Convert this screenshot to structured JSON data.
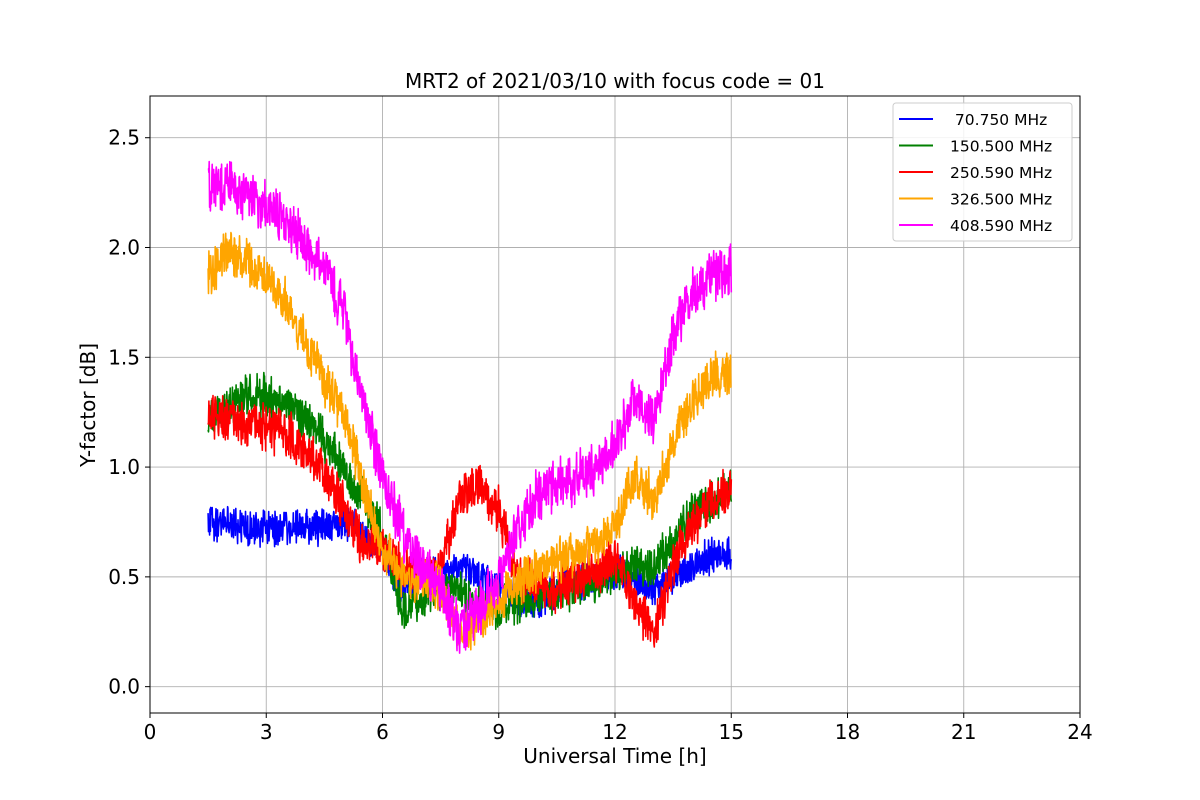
{
  "chart_data": {
    "type": "line",
    "title": "MRT2 of 2021/03/10 with focus code = 01",
    "xlabel": "Universal Time [h]",
    "ylabel": "Y-factor [dB]",
    "xlim": [
      0,
      24
    ],
    "ylim": [
      -0.12,
      2.69
    ],
    "xticks": [
      0,
      3,
      6,
      9,
      12,
      15,
      18,
      21,
      24
    ],
    "yticks": [
      0.0,
      0.5,
      1.0,
      1.5,
      2.0,
      2.5
    ],
    "ytick_labels": [
      "0.0",
      "0.5",
      "1.0",
      "1.5",
      "2.0",
      "2.5"
    ],
    "grid": true,
    "legend_position": "top-right",
    "x_range_data": [
      1.5,
      15.0
    ],
    "series": [
      {
        "name": " 70.750 MHz",
        "color": "#0000ff",
        "noise": 0.07,
        "points": [
          [
            1.5,
            0.75
          ],
          [
            2.0,
            0.75
          ],
          [
            2.5,
            0.72
          ],
          [
            3.0,
            0.72
          ],
          [
            3.5,
            0.74
          ],
          [
            4.0,
            0.73
          ],
          [
            4.5,
            0.72
          ],
          [
            5.0,
            0.75
          ],
          [
            5.5,
            0.7
          ],
          [
            6.0,
            0.62
          ],
          [
            6.5,
            0.45
          ],
          [
            7.0,
            0.5
          ],
          [
            7.5,
            0.52
          ],
          [
            8.0,
            0.55
          ],
          [
            8.5,
            0.5
          ],
          [
            9.0,
            0.45
          ],
          [
            9.5,
            0.4
          ],
          [
            10.0,
            0.4
          ],
          [
            10.5,
            0.45
          ],
          [
            11.0,
            0.48
          ],
          [
            11.5,
            0.5
          ],
          [
            12.0,
            0.52
          ],
          [
            12.5,
            0.48
          ],
          [
            13.0,
            0.45
          ],
          [
            13.5,
            0.5
          ],
          [
            14.0,
            0.55
          ],
          [
            14.5,
            0.6
          ],
          [
            15.0,
            0.6
          ]
        ]
      },
      {
        "name": "150.500 MHz",
        "color": "#008000",
        "noise": 0.08,
        "points": [
          [
            1.5,
            1.22
          ],
          [
            2.0,
            1.28
          ],
          [
            2.5,
            1.33
          ],
          [
            3.0,
            1.32
          ],
          [
            3.5,
            1.28
          ],
          [
            4.0,
            1.22
          ],
          [
            4.5,
            1.12
          ],
          [
            5.0,
            1.0
          ],
          [
            5.5,
            0.85
          ],
          [
            6.0,
            0.7
          ],
          [
            6.5,
            0.35
          ],
          [
            7.0,
            0.4
          ],
          [
            7.5,
            0.45
          ],
          [
            8.0,
            0.42
          ],
          [
            8.5,
            0.38
          ],
          [
            9.0,
            0.35
          ],
          [
            9.5,
            0.38
          ],
          [
            10.0,
            0.4
          ],
          [
            10.5,
            0.42
          ],
          [
            11.0,
            0.45
          ],
          [
            11.5,
            0.48
          ],
          [
            12.0,
            0.52
          ],
          [
            12.5,
            0.55
          ],
          [
            13.0,
            0.55
          ],
          [
            13.5,
            0.65
          ],
          [
            14.0,
            0.8
          ],
          [
            14.5,
            0.85
          ],
          [
            15.0,
            0.88
          ]
        ]
      },
      {
        "name": "250.590 MHz",
        "color": "#ff0000",
        "noise": 0.09,
        "points": [
          [
            1.5,
            1.25
          ],
          [
            2.0,
            1.22
          ],
          [
            2.5,
            1.2
          ],
          [
            3.0,
            1.18
          ],
          [
            3.5,
            1.15
          ],
          [
            4.0,
            1.08
          ],
          [
            4.5,
            0.98
          ],
          [
            5.0,
            0.82
          ],
          [
            5.5,
            0.65
          ],
          [
            6.0,
            0.62
          ],
          [
            6.5,
            0.55
          ],
          [
            7.0,
            0.5
          ],
          [
            7.5,
            0.55
          ],
          [
            8.0,
            0.85
          ],
          [
            8.5,
            0.92
          ],
          [
            9.0,
            0.8
          ],
          [
            9.5,
            0.5
          ],
          [
            10.0,
            0.45
          ],
          [
            10.5,
            0.45
          ],
          [
            11.0,
            0.5
          ],
          [
            11.5,
            0.52
          ],
          [
            12.0,
            0.58
          ],
          [
            12.5,
            0.4
          ],
          [
            13.0,
            0.25
          ],
          [
            13.5,
            0.55
          ],
          [
            14.0,
            0.75
          ],
          [
            14.5,
            0.85
          ],
          [
            15.0,
            0.9
          ]
        ]
      },
      {
        "name": "326.500 MHz",
        "color": "#ffa500",
        "noise": 0.09,
        "points": [
          [
            1.5,
            1.88
          ],
          [
            2.0,
            1.98
          ],
          [
            2.5,
            1.92
          ],
          [
            3.0,
            1.85
          ],
          [
            3.5,
            1.75
          ],
          [
            4.0,
            1.58
          ],
          [
            4.5,
            1.4
          ],
          [
            5.0,
            1.25
          ],
          [
            5.5,
            0.92
          ],
          [
            6.0,
            0.62
          ],
          [
            6.5,
            0.52
          ],
          [
            7.0,
            0.48
          ],
          [
            7.5,
            0.45
          ],
          [
            8.0,
            0.25
          ],
          [
            8.5,
            0.3
          ],
          [
            9.0,
            0.4
          ],
          [
            9.5,
            0.48
          ],
          [
            10.0,
            0.52
          ],
          [
            10.5,
            0.58
          ],
          [
            11.0,
            0.62
          ],
          [
            11.5,
            0.65
          ],
          [
            12.0,
            0.72
          ],
          [
            12.5,
            0.95
          ],
          [
            13.0,
            0.85
          ],
          [
            13.5,
            1.1
          ],
          [
            14.0,
            1.3
          ],
          [
            14.5,
            1.42
          ],
          [
            15.0,
            1.43
          ]
        ]
      },
      {
        "name": "408.590 MHz",
        "color": "#ff00ff",
        "noise": 0.1,
        "points": [
          [
            1.5,
            2.3
          ],
          [
            2.0,
            2.28
          ],
          [
            2.5,
            2.25
          ],
          [
            3.0,
            2.18
          ],
          [
            3.5,
            2.12
          ],
          [
            4.0,
            2.0
          ],
          [
            4.5,
            1.9
          ],
          [
            5.0,
            1.7
          ],
          [
            5.5,
            1.3
          ],
          [
            6.0,
            0.95
          ],
          [
            6.5,
            0.72
          ],
          [
            7.0,
            0.55
          ],
          [
            7.5,
            0.45
          ],
          [
            8.0,
            0.25
          ],
          [
            8.5,
            0.35
          ],
          [
            9.0,
            0.5
          ],
          [
            9.5,
            0.72
          ],
          [
            10.0,
            0.88
          ],
          [
            10.5,
            0.92
          ],
          [
            11.0,
            0.95
          ],
          [
            11.5,
            1.0
          ],
          [
            12.0,
            1.1
          ],
          [
            12.5,
            1.3
          ],
          [
            13.0,
            1.2
          ],
          [
            13.5,
            1.6
          ],
          [
            14.0,
            1.78
          ],
          [
            14.5,
            1.88
          ],
          [
            15.0,
            1.9
          ]
        ]
      }
    ]
  }
}
